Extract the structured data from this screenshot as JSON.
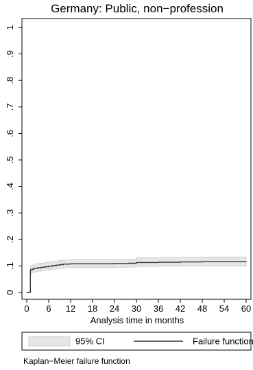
{
  "chart_data": {
    "type": "line",
    "title": "Germany: Public, non−profession",
    "xlabel": "Analysis time in months",
    "ylabel": "",
    "xlim": [
      0,
      60
    ],
    "ylim": [
      0,
      1
    ],
    "x_ticks": [
      0,
      6,
      12,
      18,
      24,
      30,
      36,
      42,
      48,
      54,
      60
    ],
    "y_ticks": [
      0,
      0.1,
      0.2,
      0.3,
      0.4,
      0.5,
      0.6,
      0.7,
      0.8,
      0.9,
      1
    ],
    "y_tick_labels": [
      "0",
      ".1",
      ".2",
      ".3",
      ".4",
      ".5",
      ".6",
      ".7",
      ".8",
      ".9",
      "1"
    ],
    "grid": false,
    "legend_position": "bottom",
    "series": [
      {
        "name": "Failure function",
        "color": "#000000",
        "step": true,
        "x": [
          0,
          1,
          1.5,
          2,
          3,
          4,
          5,
          6,
          7,
          8,
          9,
          10,
          12,
          18,
          24,
          28,
          30,
          36,
          42,
          48,
          54,
          60
        ],
        "y": [
          0,
          0.085,
          0.088,
          0.091,
          0.093,
          0.095,
          0.097,
          0.099,
          0.101,
          0.103,
          0.105,
          0.107,
          0.108,
          0.108,
          0.109,
          0.11,
          0.113,
          0.114,
          0.115,
          0.116,
          0.116,
          0.117
        ]
      },
      {
        "name": "95% CI",
        "color": "#e6e6e6",
        "step": true,
        "x": [
          0,
          1,
          1.5,
          2,
          3,
          4,
          5,
          6,
          7,
          8,
          9,
          10,
          12,
          18,
          24,
          28,
          30,
          36,
          42,
          48,
          54,
          60
        ],
        "lower": [
          0,
          0.072,
          0.075,
          0.078,
          0.08,
          0.082,
          0.084,
          0.086,
          0.088,
          0.09,
          0.091,
          0.093,
          0.094,
          0.094,
          0.095,
          0.096,
          0.098,
          0.099,
          0.1,
          0.1,
          0.1,
          0.1
        ],
        "upper": [
          0,
          0.1,
          0.103,
          0.107,
          0.109,
          0.111,
          0.113,
          0.115,
          0.117,
          0.119,
          0.121,
          0.123,
          0.124,
          0.124,
          0.125,
          0.126,
          0.131,
          0.132,
          0.133,
          0.134,
          0.134,
          0.135
        ]
      }
    ],
    "legend": [
      {
        "label": "95% CI",
        "kind": "band",
        "color": "#e6e6e6"
      },
      {
        "label": "Failure function",
        "kind": "line",
        "color": "#000000"
      }
    ],
    "note": "Kaplan−Meier failure function"
  }
}
